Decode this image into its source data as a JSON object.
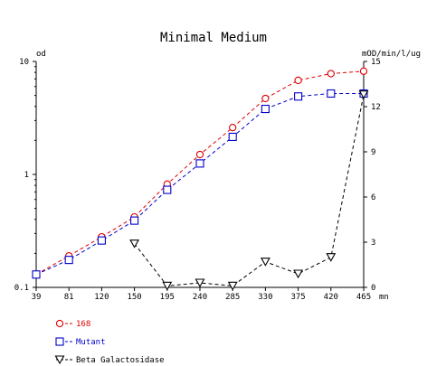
{
  "chart_data": {
    "type": "line",
    "title": "Minimal Medium",
    "y_left_label": "od",
    "y_right_label": "mOD/min/l/ug",
    "x_unit_label": "mn",
    "x_ticks": [
      39,
      81,
      120,
      150,
      195,
      240,
      285,
      330,
      375,
      420,
      465
    ],
    "x_range": [
      39,
      465
    ],
    "y_left_scale": "log",
    "y_left_range": [
      0.1,
      10
    ],
    "y_left_ticks": [
      {
        "value": 0.1,
        "label": "0.1"
      },
      {
        "value": 1,
        "label": "1"
      },
      {
        "value": 10,
        "label": "10"
      }
    ],
    "y_right_range": [
      0,
      15
    ],
    "y_right_ticks": [
      {
        "value": 0,
        "label": "0"
      },
      {
        "value": 3,
        "label": "3"
      },
      {
        "value": 6,
        "label": "6"
      },
      {
        "value": 9,
        "label": "9"
      },
      {
        "value": 12,
        "label": "12"
      },
      {
        "value": 15,
        "label": "15"
      }
    ],
    "grid": false,
    "legend_position": "bottom-left",
    "series": [
      {
        "name": "168",
        "axis": "left",
        "color": "#e00000",
        "marker": "circle",
        "x": [
          39,
          81,
          120,
          150,
          195,
          240,
          285,
          330,
          375,
          420,
          465
        ],
        "y": [
          0.13,
          0.19,
          0.28,
          0.42,
          0.82,
          1.5,
          2.6,
          4.7,
          6.8,
          7.8,
          8.2
        ]
      },
      {
        "name": "Mutant",
        "axis": "left",
        "color": "#0000cc",
        "marker": "square",
        "x": [
          39,
          81,
          120,
          150,
          195,
          240,
          285,
          330,
          375,
          420,
          465
        ],
        "y": [
          0.13,
          0.175,
          0.26,
          0.39,
          0.73,
          1.25,
          2.15,
          3.8,
          4.9,
          5.2,
          5.2
        ]
      },
      {
        "name": "Beta Galactosidase",
        "axis": "right",
        "color": "#000000",
        "marker": "triangle-down",
        "x": [
          150,
          195,
          240,
          285,
          330,
          375,
          420,
          465
        ],
        "y": [
          2.9,
          0.1,
          0.3,
          0.1,
          1.7,
          0.9,
          2.0,
          12.8
        ]
      }
    ]
  }
}
